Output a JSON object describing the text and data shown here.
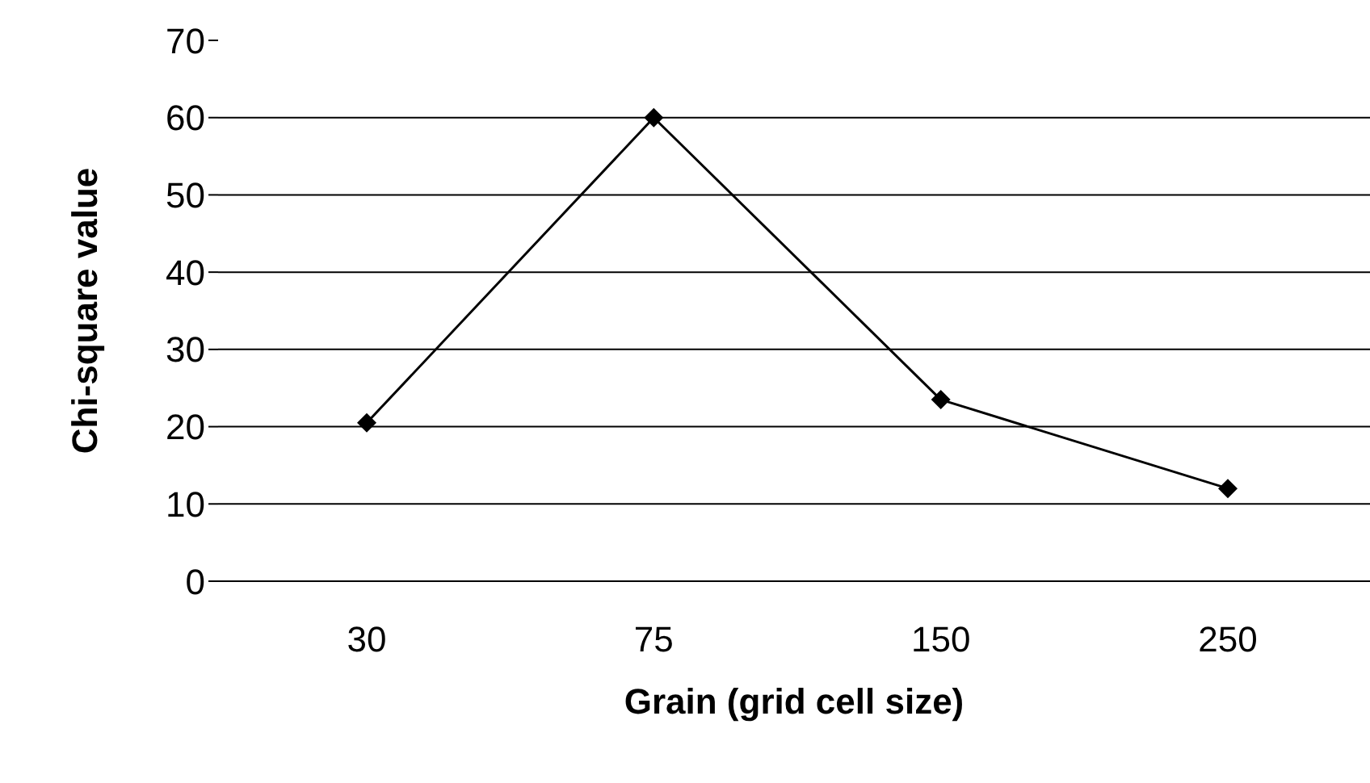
{
  "chart_data": {
    "type": "line",
    "xlabel": "Grain (grid cell size)",
    "ylabel": "Chi-square value",
    "categories": [
      "30",
      "75",
      "150",
      "250"
    ],
    "series": [
      {
        "color": "#000000",
        "values": [
          20.5,
          60,
          23.5,
          12
        ]
      }
    ],
    "ylim": [
      0,
      70
    ],
    "yticks": [
      0,
      10,
      20,
      30,
      40,
      50,
      60,
      70
    ],
    "grid": "y",
    "marker": "diamond",
    "line_style": "solid"
  }
}
